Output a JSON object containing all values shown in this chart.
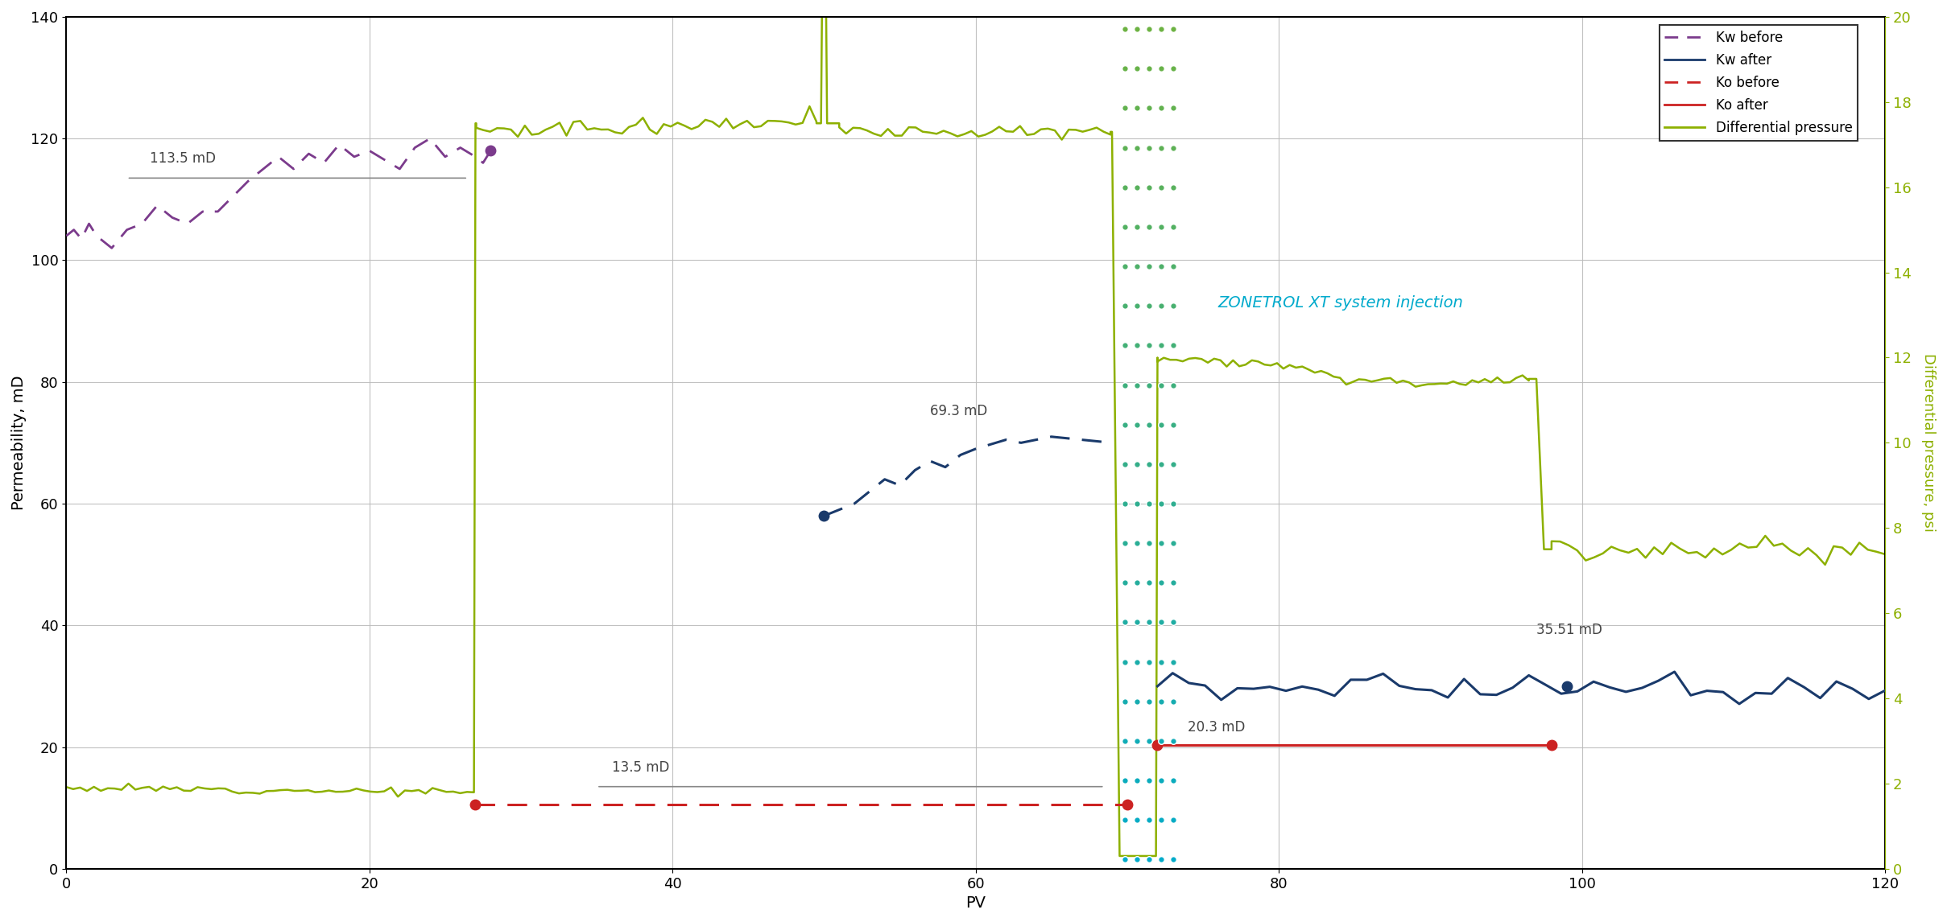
{
  "xlabel": "PV",
  "ylabel_left": "Permeability, mD",
  "ylabel_right": "Differential pressure, psi",
  "xlim": [
    0,
    120
  ],
  "ylim_left": [
    0,
    140
  ],
  "ylim_right": [
    0,
    20
  ],
  "xticks": [
    0,
    20,
    40,
    60,
    80,
    100,
    120
  ],
  "yticks_left": [
    0,
    20,
    40,
    60,
    80,
    100,
    120,
    140
  ],
  "yticks_right": [
    0,
    2,
    4,
    6,
    8,
    10,
    12,
    14,
    16,
    18,
    20
  ],
  "injection_zone": [
    69.5,
    73.5
  ],
  "colors": {
    "kw_before": "#7B3B8C",
    "kw_after": "#1A3A6B",
    "ko_before": "#CC2222",
    "ko_after": "#CC2222",
    "diff_pressure": "#8DB000",
    "zonetrol_text": "#00AACC",
    "grid": "#BBBBBB",
    "annotation_line": "#888888"
  },
  "background_color": "#FFFFFF",
  "figsize": [
    24.18,
    11.46
  ],
  "dpi": 100
}
